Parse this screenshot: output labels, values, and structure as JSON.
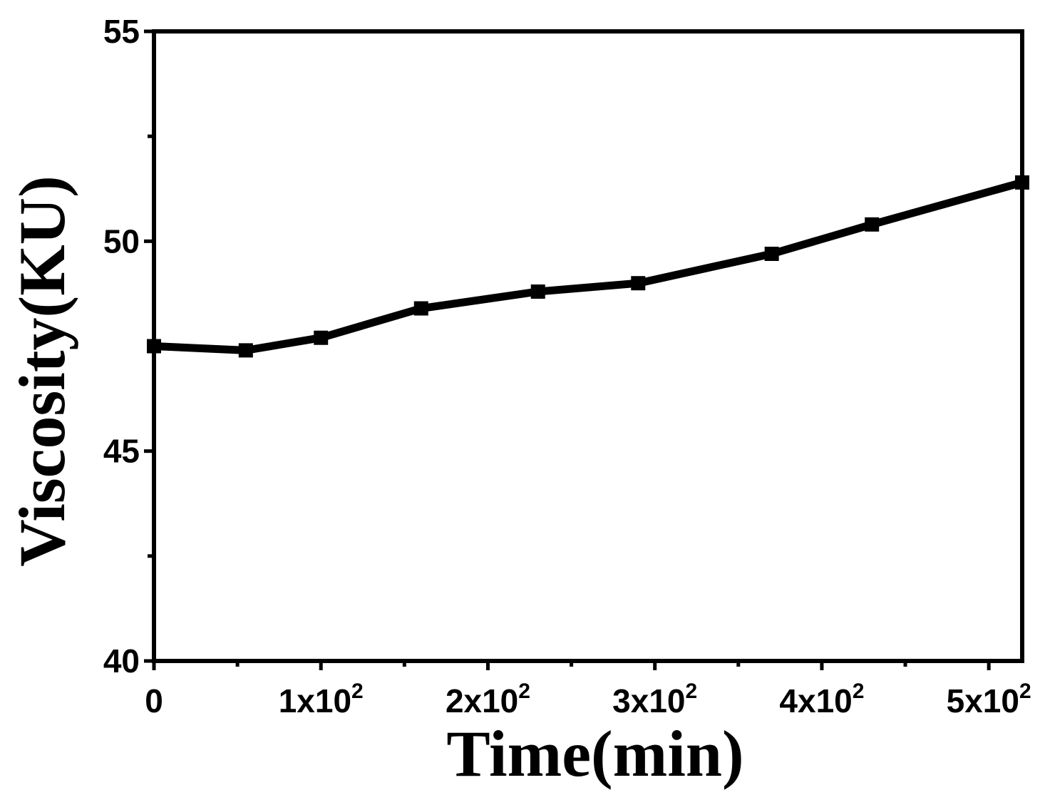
{
  "chart_data": {
    "type": "line",
    "xlabel": "Time(min)",
    "ylabel": "Viscosity(KU)",
    "xlim": [
      0,
      520
    ],
    "ylim": [
      40,
      55
    ],
    "x_ticks": [
      {
        "value": 0,
        "mantissa": "0",
        "exp": ""
      },
      {
        "value": 100,
        "mantissa": "1x10",
        "exp": "2"
      },
      {
        "value": 200,
        "mantissa": "2x10",
        "exp": "2"
      },
      {
        "value": 300,
        "mantissa": "3x10",
        "exp": "2"
      },
      {
        "value": 400,
        "mantissa": "4x10",
        "exp": "2"
      },
      {
        "value": 500,
        "mantissa": "5x10",
        "exp": "2"
      }
    ],
    "x_minor_ticks": [
      50,
      150,
      250,
      350,
      450
    ],
    "y_ticks": [
      40,
      45,
      50,
      55
    ],
    "y_minor_ticks": [
      42.5,
      47.5,
      52.5
    ],
    "series": [
      {
        "marker": "square",
        "color": "#000000",
        "points": [
          [
            0,
            47.5
          ],
          [
            55,
            47.4
          ],
          [
            100,
            47.7
          ],
          [
            160,
            48.4
          ],
          [
            230,
            48.8
          ],
          [
            290,
            49.0
          ],
          [
            370,
            49.7
          ],
          [
            430,
            50.4
          ],
          [
            520,
            51.4
          ]
        ]
      }
    ]
  }
}
